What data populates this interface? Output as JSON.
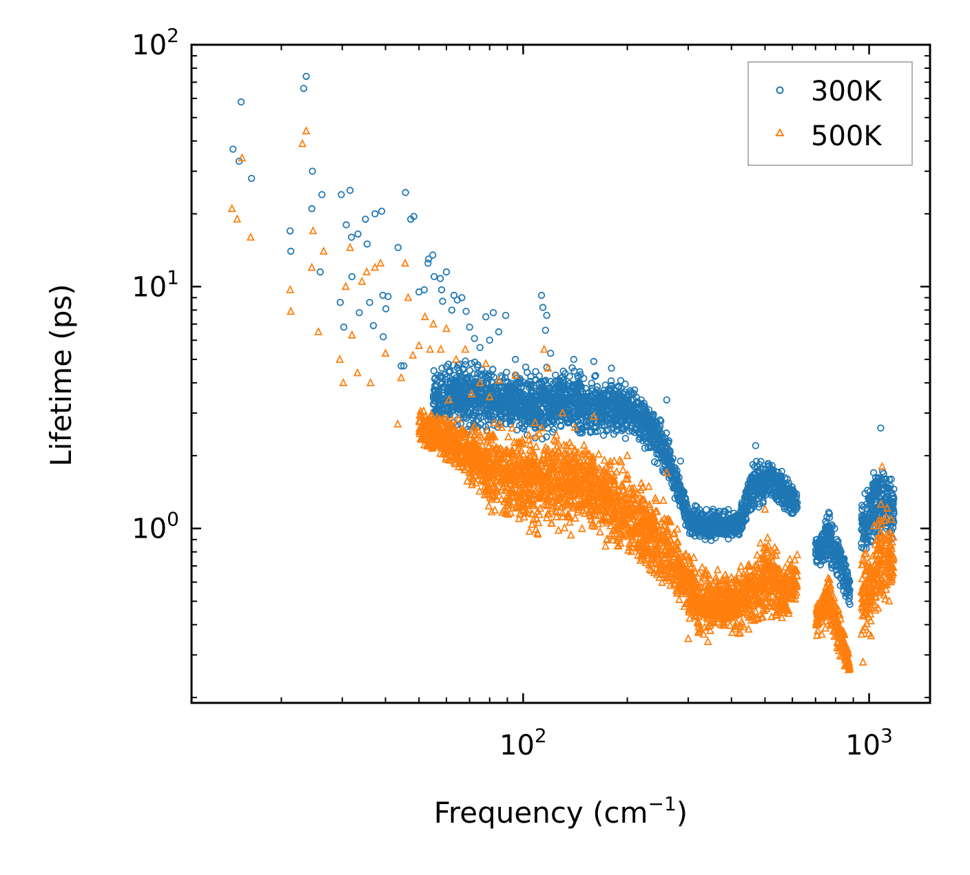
{
  "chart_data": {
    "type": "scatter",
    "title": "",
    "xlabel_base": "Frequency (cm",
    "xlabel_sup": "−1",
    "xlabel_close": ")",
    "ylabel": "Lifetime (ps)",
    "xscale": "log",
    "yscale": "log",
    "xlim": [
      11,
      1500
    ],
    "ylim": [
      0.19,
      100
    ],
    "x_major_ticks": [
      {
        "value": 100,
        "base": "10",
        "exp": "2"
      },
      {
        "value": 1000,
        "base": "10",
        "exp": "3"
      }
    ],
    "y_major_ticks": [
      {
        "value": 1,
        "base": "10",
        "exp": "0"
      },
      {
        "value": 10,
        "base": "10",
        "exp": "1"
      },
      {
        "value": 100,
        "base": "10",
        "exp": "2"
      }
    ],
    "legend_position": "upper-right",
    "series": [
      {
        "name": "300K",
        "color": "#1f77b4",
        "marker": "circle",
        "points": [
          [
            14.5,
            37
          ],
          [
            15.1,
            33
          ],
          [
            15.3,
            58
          ],
          [
            16.4,
            28
          ],
          [
            21.2,
            17
          ],
          [
            21.3,
            14
          ],
          [
            23.2,
            66
          ],
          [
            23.6,
            74
          ],
          [
            24.6,
            30
          ],
          [
            24.5,
            21
          ],
          [
            25.9,
            11.5
          ],
          [
            26.2,
            24
          ],
          [
            29.8,
            24
          ],
          [
            30.8,
            18
          ],
          [
            31.6,
            25
          ],
          [
            31.9,
            16
          ],
          [
            32.0,
            11
          ],
          [
            33.3,
            16.5
          ],
          [
            35.0,
            19
          ],
          [
            35.4,
            15
          ],
          [
            37.3,
            20
          ],
          [
            39.0,
            20.5
          ],
          [
            29.6,
            8.6
          ],
          [
            30.3,
            6.8
          ],
          [
            33.6,
            7.8
          ],
          [
            36.0,
            8.6
          ],
          [
            36.9,
            6.9
          ],
          [
            39.3,
            9.2
          ],
          [
            40.1,
            8.1
          ],
          [
            39.4,
            6.2
          ],
          [
            40.7,
            9.1
          ],
          [
            43.5,
            14.5
          ],
          [
            44.4,
            4.7
          ],
          [
            45.2,
            4.7
          ],
          [
            45.7,
            24.5
          ],
          [
            47.3,
            19
          ],
          [
            48.3,
            19.5
          ],
          [
            50.0,
            9.5
          ],
          [
            51.8,
            9.7
          ],
          [
            53.1,
            12.5
          ],
          [
            53.3,
            13
          ],
          [
            54.8,
            13.5
          ],
          [
            55.3,
            11
          ],
          [
            57.6,
            10.8
          ],
          [
            58.1,
            9.7
          ],
          [
            58.5,
            8.7
          ],
          [
            60.0,
            11.5
          ],
          [
            62.2,
            8.0
          ],
          [
            63.1,
            9.2
          ],
          [
            64.5,
            8.8
          ],
          [
            66.5,
            9.0
          ],
          [
            68.4,
            7.9
          ],
          [
            70.0,
            6.8
          ],
          [
            72.3,
            6.1
          ],
          [
            75.0,
            5.6
          ],
          [
            78.0,
            7.5
          ],
          [
            80.0,
            6.0
          ],
          [
            82.0,
            7.8
          ],
          [
            85.0,
            6.5
          ],
          [
            89.0,
            7.6
          ],
          [
            95.0,
            5.0
          ],
          [
            113.0,
            9.2
          ],
          [
            114.0,
            8.2
          ],
          [
            116.0,
            6.6
          ],
          [
            117.0,
            7.6
          ],
          [
            120.0,
            5.3
          ],
          [
            140.0,
            5.0
          ],
          [
            160.0,
            4.9
          ],
          [
            180.0,
            4.6
          ],
          [
            260.0,
            3.4
          ],
          [
            285.0,
            1.9
          ],
          [
            470.0,
            2.2
          ],
          [
            580.0,
            1.6
          ],
          [
            1080.0,
            2.6
          ]
        ],
        "bands": [
          [
            [
              55,
              2.6,
              5.0
            ],
            [
              70,
              2.3,
              5.2
            ],
            [
              90,
              2.4,
              4.8
            ],
            [
              110,
              2.2,
              4.8
            ],
            [
              130,
              2.3,
              5.0
            ],
            [
              160,
              2.2,
              4.6
            ],
            [
              200,
              2.3,
              4.3
            ],
            [
              230,
              2.0,
              3.6
            ],
            [
              255,
              1.5,
              3.0
            ],
            [
              275,
              1.3,
              2.0
            ],
            [
              300,
              0.9,
              1.3
            ],
            [
              350,
              0.85,
              1.25
            ],
            [
              420,
              0.9,
              1.2
            ],
            [
              460,
              1.1,
              2.0
            ],
            [
              520,
              1.3,
              2.0
            ],
            [
              580,
              1.1,
              1.7
            ],
            [
              620,
              1.1,
              1.5
            ]
          ],
          [
            [
              700,
              0.65,
              1.0
            ],
            [
              760,
              0.7,
              1.25
            ],
            [
              820,
              0.5,
              1.0
            ],
            [
              880,
              0.45,
              0.7
            ]
          ],
          [
            [
              950,
              0.65,
              1.5
            ],
            [
              1030,
              0.8,
              2.0
            ],
            [
              1100,
              0.8,
              2.2
            ],
            [
              1180,
              0.9,
              1.6
            ]
          ]
        ]
      },
      {
        "name": "500K",
        "color": "#ff7f0e",
        "marker": "triangle",
        "points": [
          [
            14.4,
            21
          ],
          [
            14.9,
            19
          ],
          [
            15.4,
            34
          ],
          [
            16.3,
            16
          ],
          [
            21.2,
            9.7
          ],
          [
            21.3,
            7.9
          ],
          [
            23.0,
            39
          ],
          [
            23.6,
            44
          ],
          [
            24.5,
            12
          ],
          [
            24.7,
            17
          ],
          [
            25.6,
            6.5
          ],
          [
            26.5,
            14
          ],
          [
            29.5,
            5.0
          ],
          [
            30.2,
            4.0
          ],
          [
            30.7,
            10
          ],
          [
            31.6,
            14.5
          ],
          [
            32.0,
            6.3
          ],
          [
            33.2,
            4.4
          ],
          [
            34.2,
            10.5
          ],
          [
            35.3,
            11.5
          ],
          [
            36.2,
            4.0
          ],
          [
            37.3,
            12
          ],
          [
            38.7,
            12.5
          ],
          [
            40.0,
            5.3
          ],
          [
            43.4,
            2.7
          ],
          [
            44.4,
            4.2
          ],
          [
            45.6,
            12.5
          ],
          [
            46.5,
            9.0
          ],
          [
            48.0,
            5.2
          ],
          [
            50.0,
            5.7
          ],
          [
            52.0,
            7.5
          ],
          [
            53.8,
            5.5
          ],
          [
            55.0,
            7.0
          ],
          [
            57.8,
            5.5
          ],
          [
            60.0,
            6.7
          ],
          [
            61.0,
            3.4
          ],
          [
            64.0,
            5.0
          ],
          [
            66.0,
            2.0
          ],
          [
            68.0,
            5.5
          ],
          [
            71.0,
            3.6
          ],
          [
            75.0,
            4.0
          ],
          [
            78.0,
            4.8
          ],
          [
            80.0,
            3.5
          ],
          [
            85.0,
            4.1
          ],
          [
            95.0,
            4.3
          ],
          [
            115.0,
            5.5
          ],
          [
            118.0,
            4.6
          ],
          [
            130.0,
            3.0
          ],
          [
            160.0,
            2.9
          ],
          [
            200.0,
            2.0
          ],
          [
            260.0,
            1.7
          ],
          [
            300.0,
            0.35
          ],
          [
            500.0,
            1.2
          ],
          [
            850.0,
            0.27
          ],
          [
            960.0,
            0.28
          ],
          [
            1090.0,
            1.8
          ]
        ],
        "bands": [
          [
            [
              50,
              2.2,
              3.2
            ],
            [
              65,
              1.6,
              3.0
            ],
            [
              80,
              1.1,
              2.8
            ],
            [
              100,
              0.9,
              2.9
            ],
            [
              120,
              0.85,
              3.0
            ],
            [
              150,
              0.9,
              2.7
            ],
            [
              180,
              0.75,
              2.2
            ],
            [
              200,
              0.65,
              1.9
            ],
            [
              230,
              0.6,
              1.6
            ],
            [
              260,
              0.5,
              1.4
            ],
            [
              290,
              0.45,
              0.9
            ],
            [
              320,
              0.3,
              0.8
            ],
            [
              360,
              0.35,
              0.7
            ],
            [
              420,
              0.33,
              0.75
            ],
            [
              470,
              0.35,
              0.9
            ],
            [
              510,
              0.4,
              1.1
            ],
            [
              560,
              0.35,
              0.8
            ],
            [
              620,
              0.5,
              0.8
            ]
          ],
          [
            [
              700,
              0.34,
              0.5
            ],
            [
              760,
              0.38,
              0.7
            ],
            [
              820,
              0.28,
              0.5
            ],
            [
              880,
              0.24,
              0.3
            ]
          ],
          [
            [
              950,
              0.3,
              0.8
            ],
            [
              1030,
              0.35,
              1.2
            ],
            [
              1100,
              0.4,
              1.6
            ],
            [
              1180,
              0.45,
              1.1
            ]
          ]
        ]
      }
    ]
  }
}
